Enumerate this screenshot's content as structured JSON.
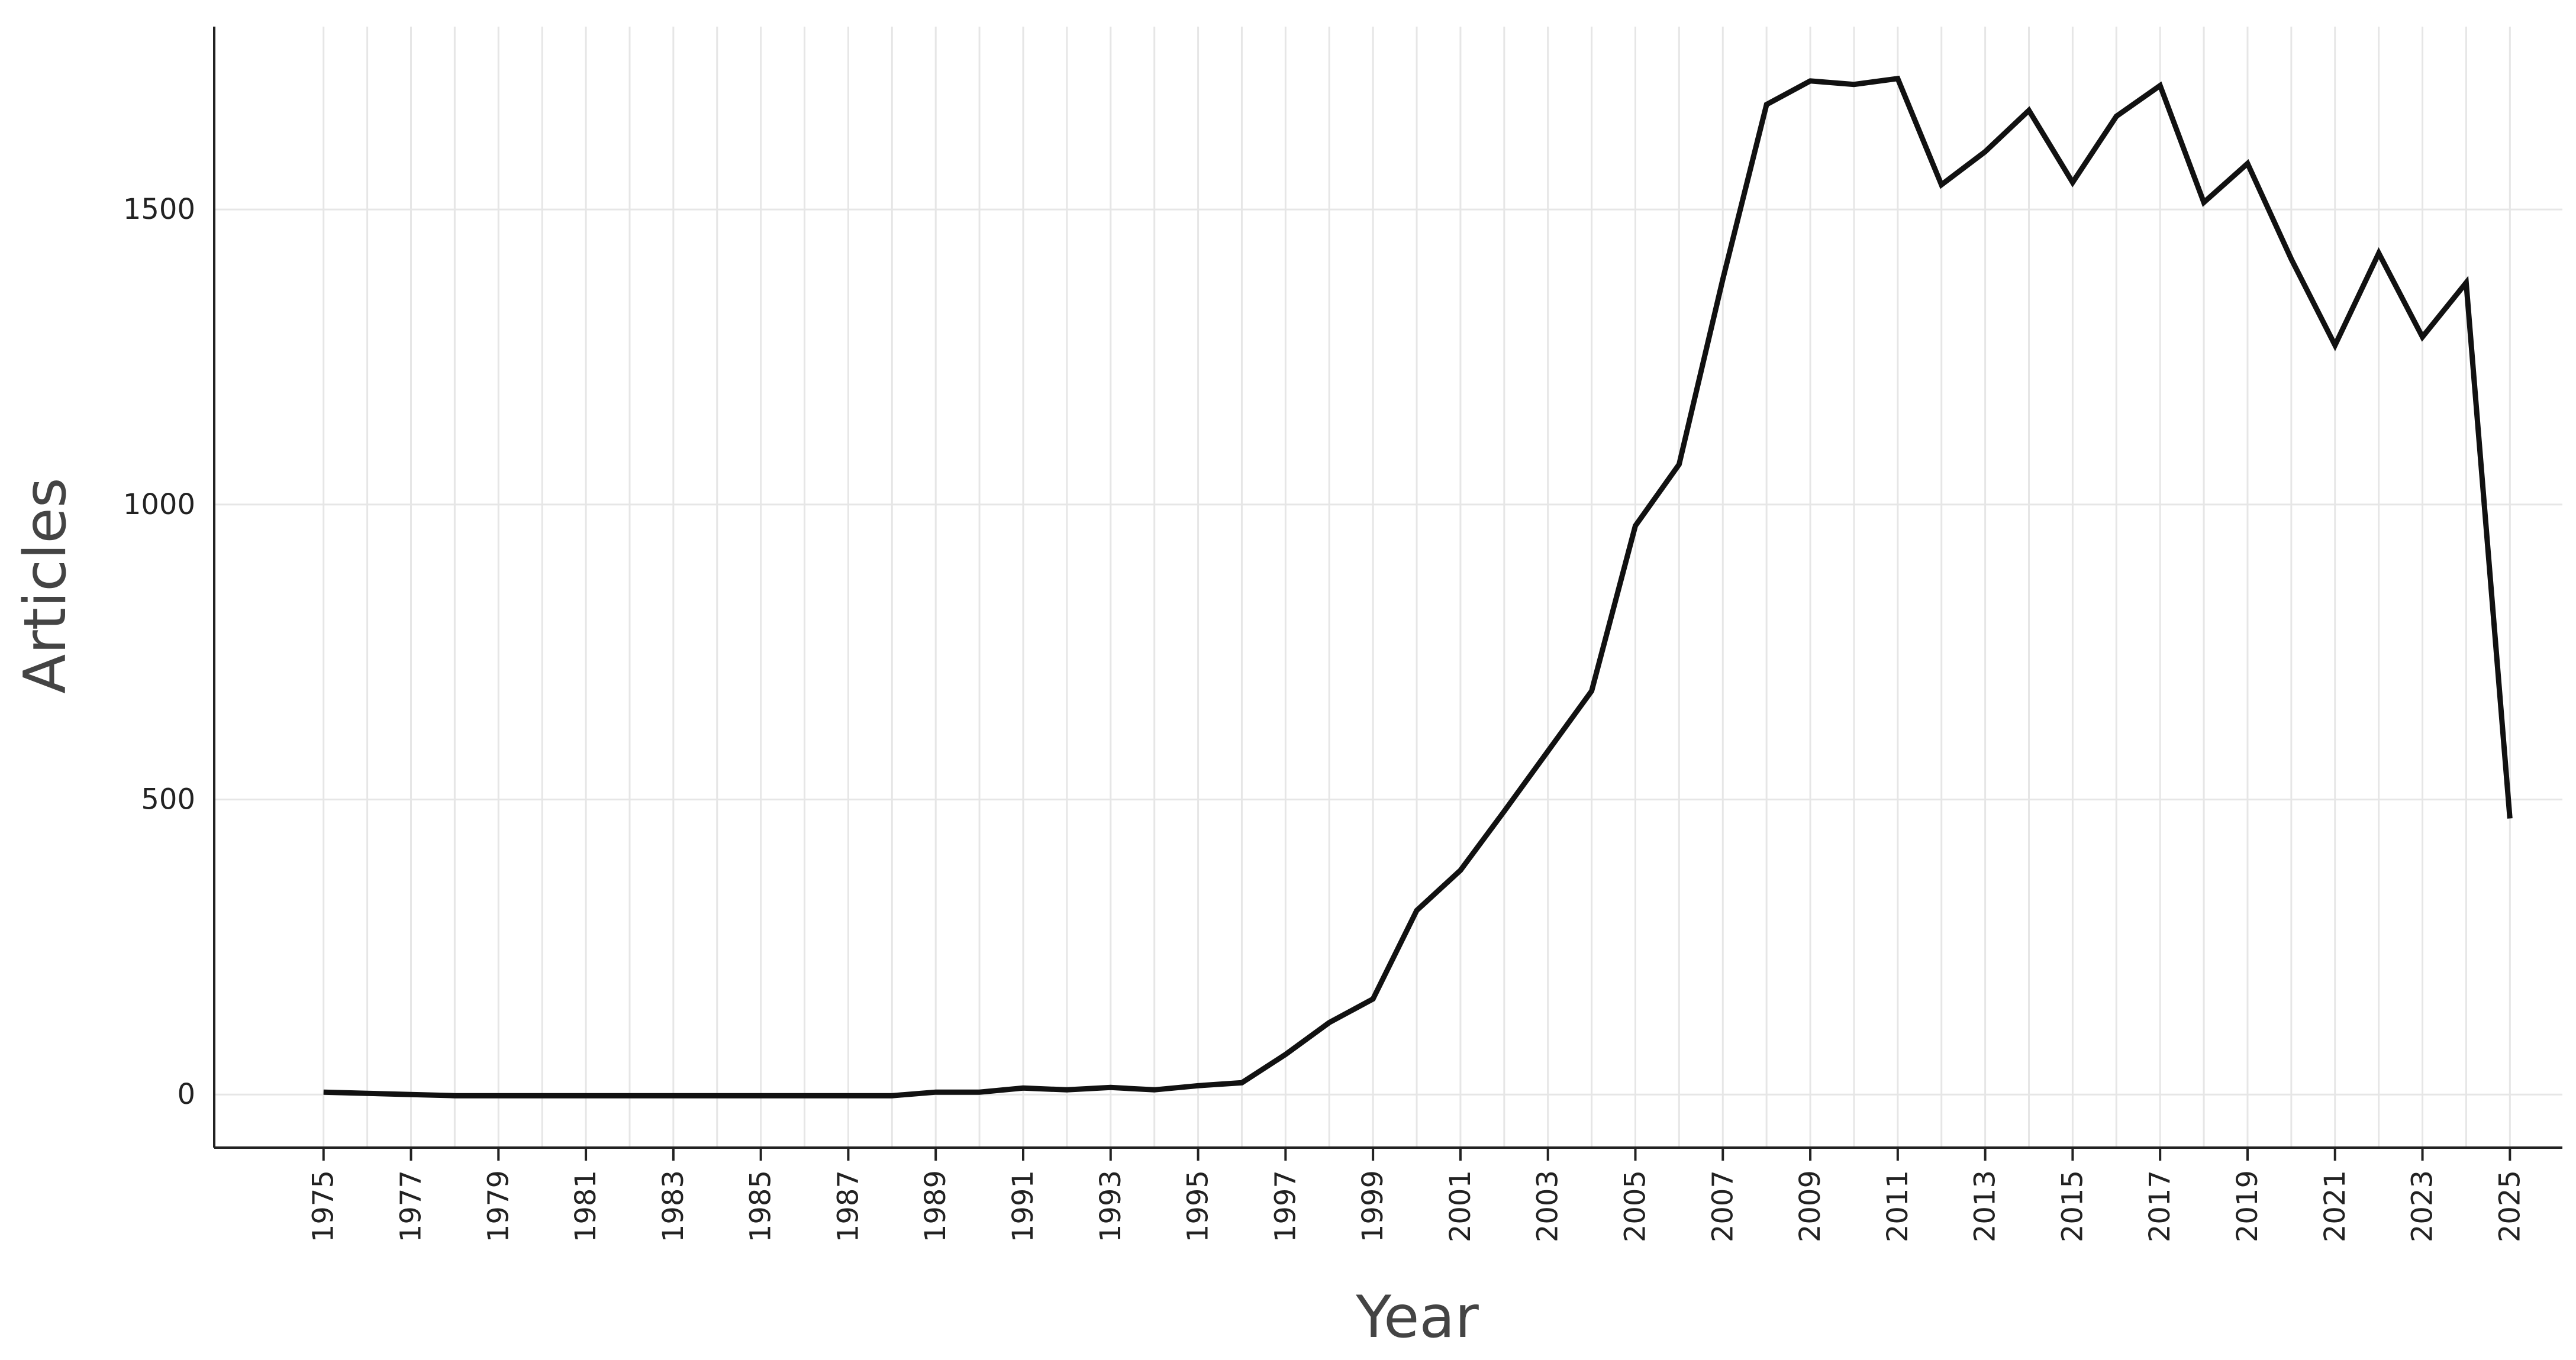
{
  "chart_data": {
    "type": "line",
    "title": "",
    "xlabel": "Year",
    "ylabel": "Articles",
    "xlim": [
      1972.5,
      2026.2
    ],
    "ylim": [
      -90,
      1810
    ],
    "grid": true,
    "legend": "none",
    "x_tick_labels": [
      "1975",
      "1977",
      "1979",
      "1981",
      "1983",
      "1985",
      "1987",
      "1989",
      "1991",
      "1993",
      "1995",
      "1997",
      "1999",
      "2001",
      "2003",
      "2005",
      "2007",
      "2009",
      "2011",
      "2013",
      "2015",
      "2017",
      "2019",
      "2021",
      "2023",
      "2025"
    ],
    "y_tick_labels": [
      "0",
      "500",
      "1000",
      "1500"
    ],
    "y_ticks": [
      0,
      500,
      1000,
      1500
    ],
    "series_color": "#111111",
    "series": [
      {
        "x": [
          1975,
          1976,
          1977,
          1978,
          1979,
          1980,
          1981,
          1982,
          1983,
          1984,
          1985,
          1986,
          1987,
          1988,
          1989,
          1990,
          1991,
          1992,
          1993,
          1994,
          1995,
          1996,
          1997,
          1998,
          1999,
          2000,
          2001,
          2002,
          2003,
          2004,
          2005,
          2006,
          2007,
          2008,
          2009,
          2010,
          2011,
          2012,
          2013,
          2014,
          2015,
          2016,
          2017,
          2018,
          2019,
          2020,
          2021,
          2022,
          2023,
          2024,
          2025
        ],
        "values": [
          4,
          2,
          0,
          -2,
          -2,
          -2,
          -2,
          -2,
          -2,
          -2,
          -2,
          -2,
          -2,
          -2,
          4,
          4,
          11,
          8,
          12,
          8,
          15,
          20,
          68,
          122,
          162,
          312,
          380,
          480,
          582,
          684,
          964,
          1068,
          1382,
          1678,
          1718,
          1712,
          1722,
          1542,
          1598,
          1668,
          1546,
          1658,
          1710,
          1512,
          1578,
          1416,
          1270,
          1426,
          1284,
          1376,
          468
        ]
      }
    ]
  }
}
